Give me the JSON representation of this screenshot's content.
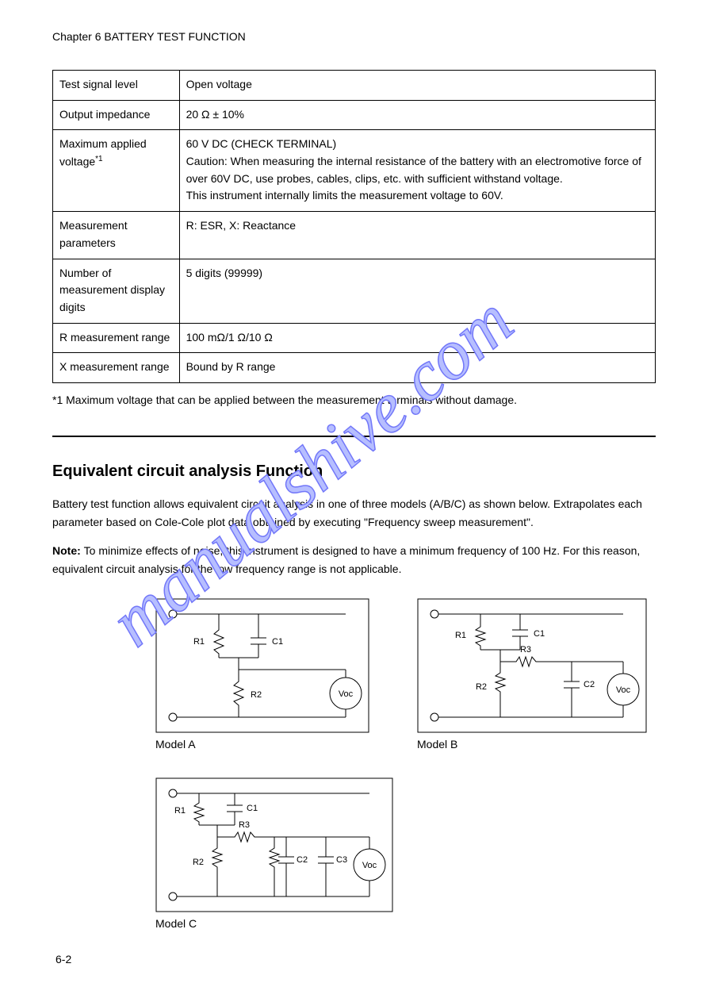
{
  "chapter_header": "Chapter 6 BATTERY TEST FUNCTION",
  "spec_table": {
    "rows": [
      {
        "label": "Test signal level",
        "value": "Open voltage"
      },
      {
        "label": "Output impedance",
        "value": "20 Ω ± 10%"
      },
      {
        "label_html": "Maximum applied voltage<span class='sup'>*1</span>",
        "value_html": "60 V DC (CHECK TERMINAL)<br>Caution: When measuring the internal resistance of the battery with an electromotive force of over 60V DC, use probes, cables, clips, etc. with sufficient withstand voltage.<br>This instrument internally limits the measurement voltage to 60V."
      },
      {
        "label": "Measurement parameters",
        "value": "R: ESR, X: Reactance"
      },
      {
        "label": "Number of measurement display digits",
        "value": "5 digits (99999)"
      },
      {
        "label": "R measurement range",
        "value": "100 mΩ/1 Ω/10 Ω"
      },
      {
        "label": "X measurement range",
        "value": "Bound by R range"
      }
    ]
  },
  "footnote_marker": "*1",
  "footnote_text": "Maximum voltage that can be applied between the measurement terminals without damage.",
  "section_title": "Equivalent circuit analysis Function",
  "para1": "Battery test function allows equivalent circuit analysis in one of three models (A/B/C) as shown below. Extrapolates each parameter based on Cole-Cole plot data obtained by executing \"Frequency sweep measurement\".",
  "note_label": "Note:",
  "note_text": "To minimize effects of noise, this instrument is designed to have a minimum frequency of 100 Hz. For this reason, equivalent circuit analysis for the low frequency range is not applicable.",
  "diagrams": {
    "a": {
      "title": "R1",
      "caption": "Model A",
      "r1": "R1",
      "c1": "C1",
      "r2": "R2",
      "voc": "Voc"
    },
    "b": {
      "title": "R1",
      "caption": "Model B",
      "r1": "R1",
      "c1": "C1",
      "r2": "R2",
      "r3": "R3",
      "c2": "C2",
      "voc": "Voc"
    },
    "c": {
      "title": "R1",
      "caption": "Model C",
      "r1": "R1",
      "c1": "C1",
      "r2": "R2",
      "r3": "R3",
      "c2": "C2",
      "c3": "C3",
      "voc": "Voc"
    }
  },
  "page_number": "6-2",
  "watermark": "manualshive.com",
  "colors": {
    "wm_fill": "#b6beff",
    "wm_stroke": "#7277f9"
  }
}
